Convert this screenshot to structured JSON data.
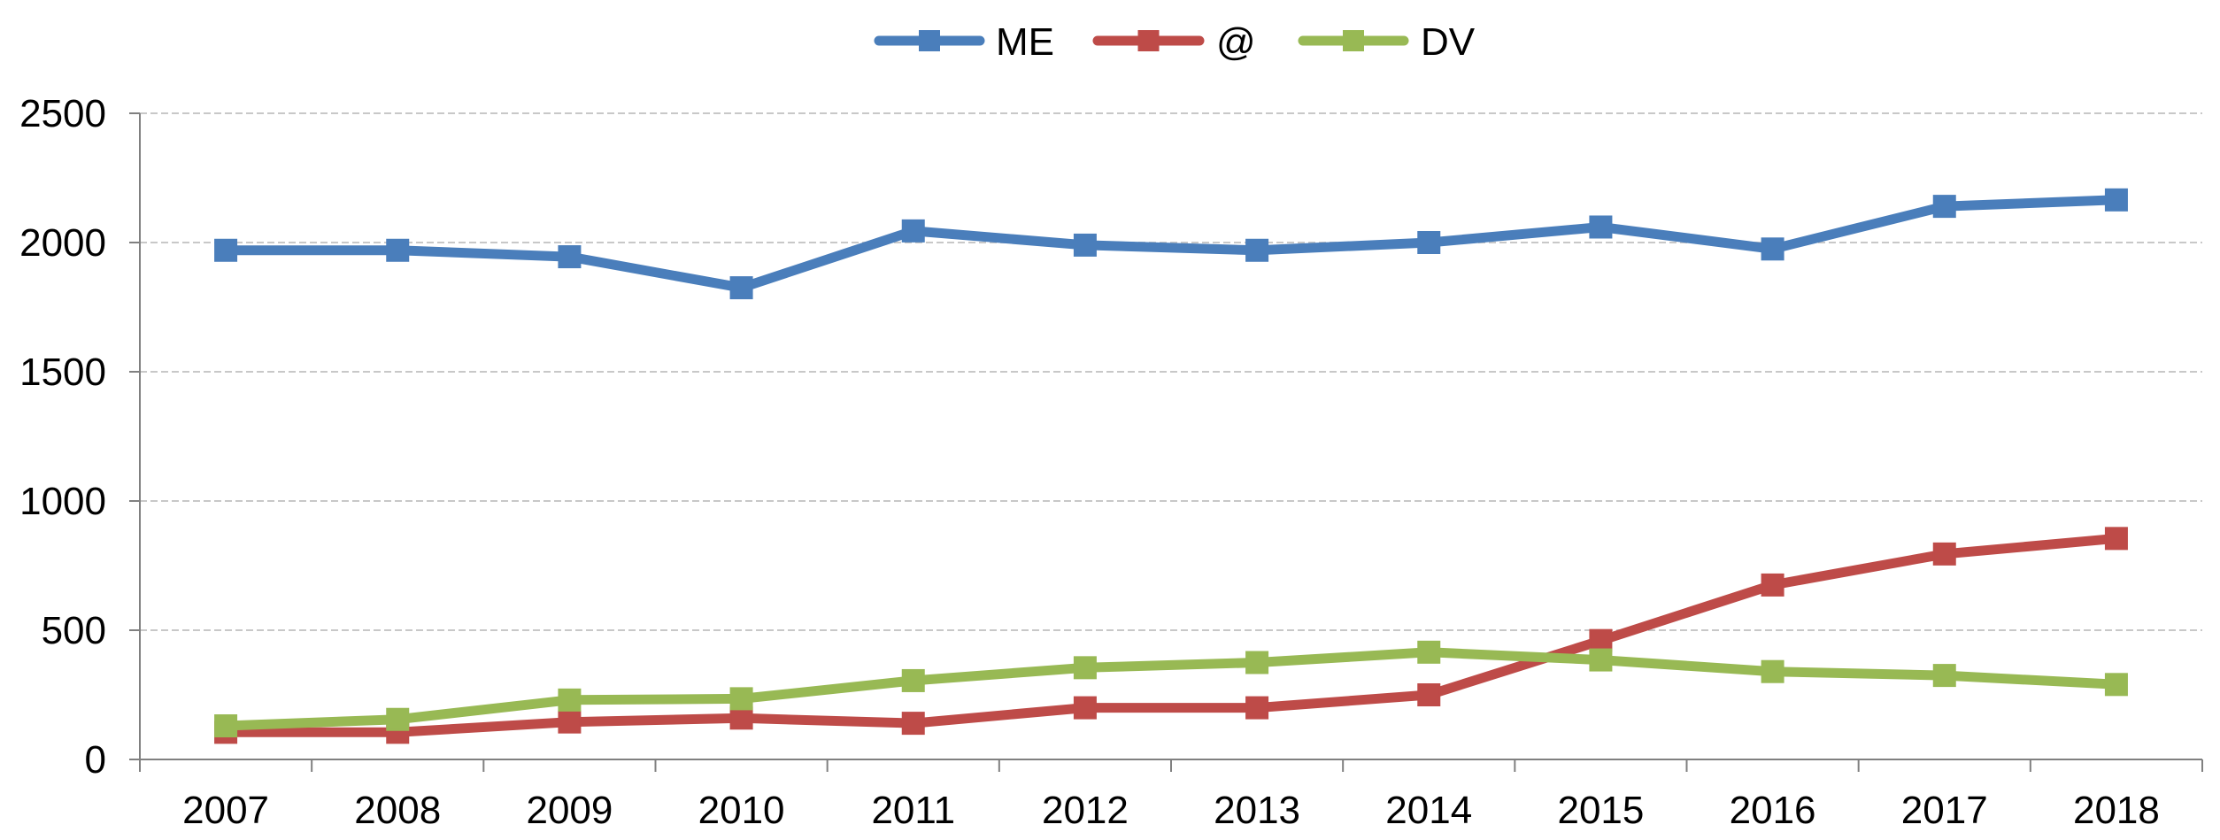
{
  "chart_data": {
    "type": "line",
    "title": "",
    "xlabel": "",
    "ylabel": "",
    "categories": [
      "2007",
      "2008",
      "2009",
      "2010",
      "2011",
      "2012",
      "2013",
      "2014",
      "2015",
      "2016",
      "2017",
      "2018"
    ],
    "ylim": [
      0,
      2500
    ],
    "yticks": [
      "0",
      "500",
      "1000",
      "1500",
      "2000",
      "2500"
    ],
    "grid": "horizontal",
    "legend_position": "top",
    "series": [
      {
        "name": "ME",
        "color": "#4a7ebb",
        "values": [
          1970,
          1970,
          1945,
          1825,
          2045,
          1990,
          1970,
          2000,
          2060,
          1975,
          2140,
          2165
        ]
      },
      {
        "name": "@",
        "color": "#be4b48",
        "values": [
          105,
          105,
          145,
          160,
          140,
          200,
          200,
          250,
          460,
          675,
          795,
          855
        ]
      },
      {
        "name": "DV",
        "color": "#98b954",
        "values": [
          130,
          155,
          230,
          235,
          305,
          355,
          375,
          415,
          385,
          340,
          325,
          290
        ]
      }
    ]
  }
}
